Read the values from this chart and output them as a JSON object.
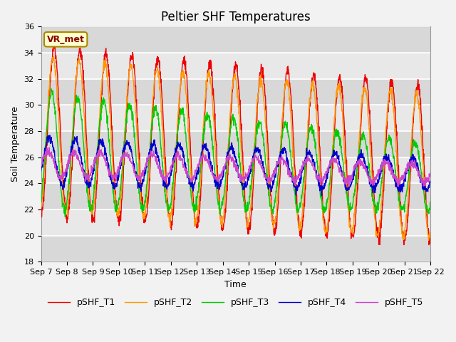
{
  "title": "Peltier SHF Temperatures",
  "xlabel": "Time",
  "ylabel": "Soil Temperature",
  "ylim": [
    18,
    36
  ],
  "x_tick_labels": [
    "Sep 7",
    "Sep 8",
    "Sep 9",
    "Sep 10",
    "Sep 11",
    "Sep 12",
    "Sep 13",
    "Sep 14",
    "Sep 15",
    "Sep 16",
    "Sep 17",
    "Sep 18",
    "Sep 19",
    "Sep 20",
    "Sep 21",
    "Sep 22"
  ],
  "legend_labels": [
    "pSHF_T1",
    "pSHF_T2",
    "pSHF_T3",
    "pSHF_T4",
    "pSHF_T5"
  ],
  "colors": [
    "#ee0000",
    "#ff9900",
    "#00cc00",
    "#0000cc",
    "#cc44cc"
  ],
  "annotation_text": "VR_met",
  "annotation_box_color": "#ffffcc",
  "annotation_box_edgecolor": "#aa8800",
  "plot_bg_color": "#e8e8e8",
  "fig_bg_color": "#f2f2f2",
  "grid_color": "#ffffff",
  "title_fontsize": 12,
  "label_fontsize": 9,
  "tick_fontsize": 8,
  "legend_fontsize": 9
}
